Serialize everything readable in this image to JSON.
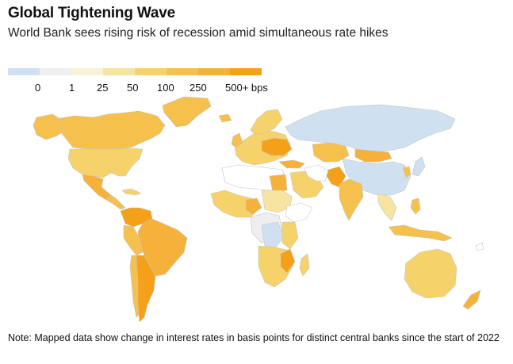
{
  "header": {
    "title": "Global Tightening Wave",
    "subtitle": "World Bank sees rising risk of recession amid simultaneous rate hikes"
  },
  "legend": {
    "colors": [
      "#cfe0f1",
      "#eeeeee",
      "#f8f2d6",
      "#f6e4a0",
      "#f6d36a",
      "#f6c04d",
      "#f5b13a",
      "#f5a019"
    ],
    "labels": [
      "0",
      "1",
      "25",
      "50",
      "100",
      "250",
      "500+ bps"
    ]
  },
  "colors": {
    "none": "#ffffff",
    "border": "#bbbbbb",
    "ocean": "#ffffff"
  },
  "note": "Note: Mapped data show change in interest rates in basis points for distinct central banks since the start of 2022"
}
